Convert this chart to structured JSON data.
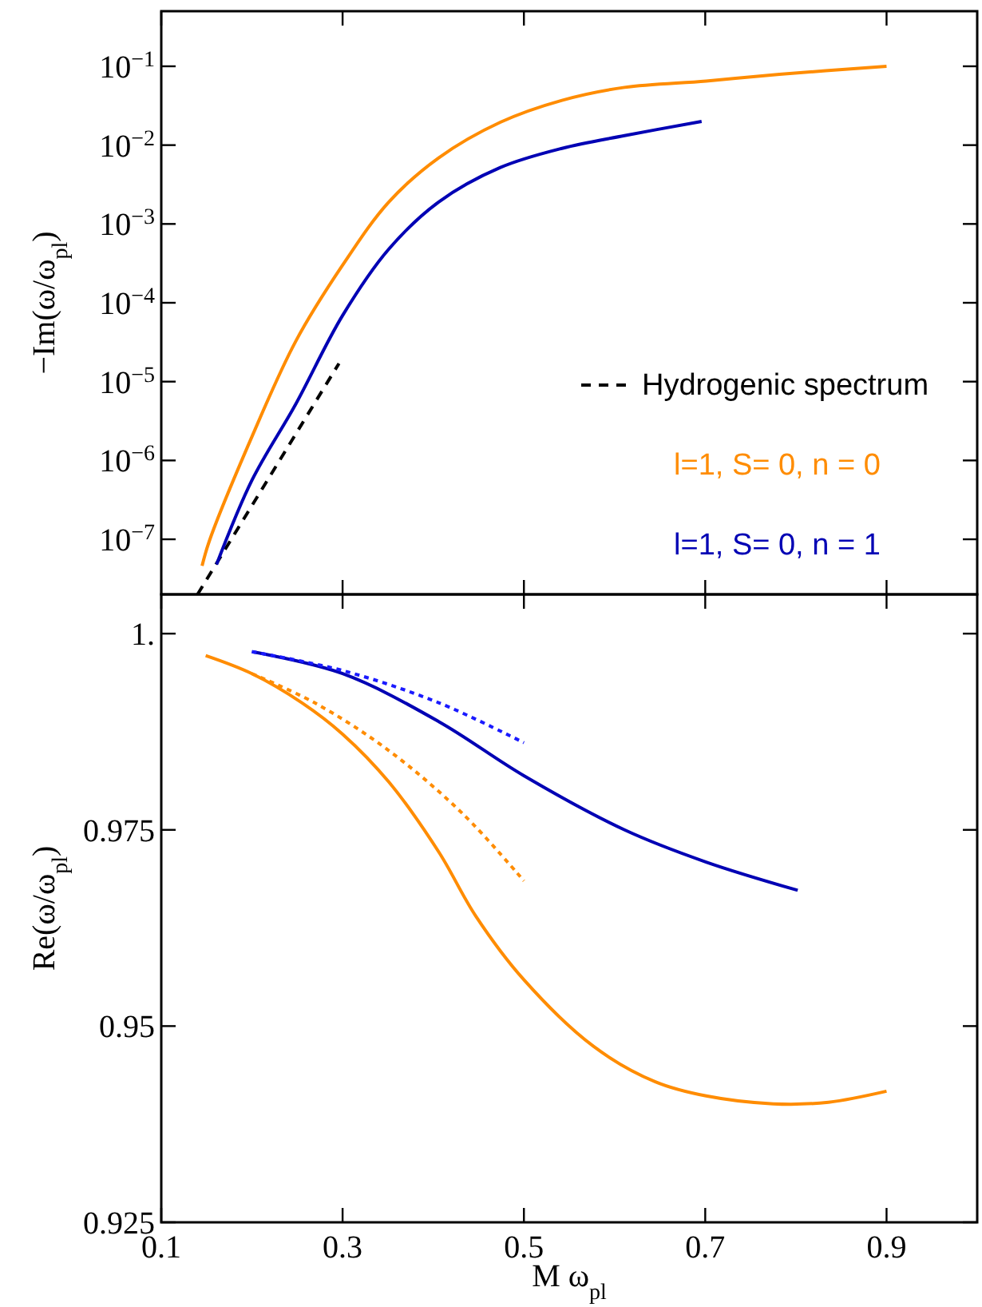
{
  "chart_data": [
    {
      "type": "line",
      "ylabel": "−Im(ω/ω$_{pl}$)",
      "log": "y",
      "xlim": [
        0.1,
        1.0
      ],
      "xticks": [
        0.1,
        0.3,
        0.5,
        0.7,
        0.9
      ],
      "ylim": [
        2e-08,
        0.5
      ],
      "yticks": [
        {
          "value": 1e-07,
          "label": "10$^{−7}$"
        },
        {
          "value": 1e-06,
          "label": "10$^{−6}$"
        },
        {
          "value": 1e-05,
          "label": "10$^{−5}$"
        },
        {
          "value": 0.0001,
          "label": "10$^{−4}$"
        },
        {
          "value": 0.001,
          "label": "10$^{−3}$"
        },
        {
          "value": 0.01,
          "label": "10$^{−2}$"
        },
        {
          "value": 0.1,
          "label": "10$^{−1}$"
        }
      ],
      "tick_labels": "y",
      "legend": "bottom right",
      "series": [
        {
          "name": "Hydrogenic spectrum",
          "color": "#000000",
          "line_style": "dashed",
          "x": [
            0.14,
            0.296
          ],
          "values": [
            2e-08,
            1.7e-05
          ]
        },
        {
          "name": "l=1, S= 0, n = 0",
          "color": "#ff8c00",
          "line_style": "solid",
          "x": [
            0.145,
            0.153,
            0.2,
            0.248,
            0.3,
            0.351,
            0.406,
            0.474,
            0.542,
            0.611,
            0.701,
            0.782,
            0.9
          ],
          "values": [
            4.6e-08,
            9.5e-08,
            2e-06,
            3.2e-05,
            0.0003,
            0.0019,
            0.0069,
            0.0195,
            0.037,
            0.054,
            0.065,
            0.079,
            0.1
          ]
        },
        {
          "name": "l=1, S= 0, n = 1",
          "color": "#0000b4",
          "line_style": "solid",
          "x": [
            0.161,
            0.2,
            0.248,
            0.3,
            0.351,
            0.406,
            0.474,
            0.542,
            0.611,
            0.696
          ],
          "values": [
            4.8e-08,
            5.6e-07,
            5.1e-06,
            6.9e-05,
            0.00048,
            0.0019,
            0.0052,
            0.0091,
            0.0132,
            0.02
          ]
        }
      ]
    },
    {
      "type": "line",
      "xlabel": "M ω$_{pl}$",
      "ylabel": "Re(ω/ω$_{pl}$)",
      "xlim": [
        0.1,
        1.0
      ],
      "xticks": [
        0.1,
        0.3,
        0.5,
        0.7,
        0.9
      ],
      "ylim": [
        0.925,
        1.005
      ],
      "yticks": [
        {
          "value": 1.0,
          "label": "1."
        },
        0.975,
        0.95,
        0.925
      ],
      "series": [
        {
          "color": "#ff8c00",
          "line_style": "solid",
          "x": [
            0.149,
            0.2,
            0.255,
            0.3,
            0.351,
            0.406,
            0.447,
            0.5,
            0.577,
            0.645,
            0.701,
            0.775,
            0.836,
            0.9
          ],
          "values": [
            0.9972,
            0.9949,
            0.9912,
            0.9872,
            0.9811,
            0.9722,
            0.964,
            0.9559,
            0.9474,
            0.9429,
            0.9411,
            0.9401,
            0.9403,
            0.9417
          ]
        },
        {
          "color": "#ff8c00",
          "line_style": "dotted",
          "x": [
            0.2,
            0.269,
            0.351,
            0.433,
            0.5
          ],
          "values": [
            0.9949,
            0.9912,
            0.9851,
            0.977,
            0.9685
          ]
        },
        {
          "color": "#0000b4",
          "line_style": "solid",
          "x": [
            0.2,
            0.3,
            0.406,
            0.5,
            0.611,
            0.701,
            0.802
          ],
          "values": [
            0.9977,
            0.9949,
            0.9888,
            0.9819,
            0.975,
            0.9709,
            0.9673
          ]
        },
        {
          "color": "#1a1aff",
          "line_style": "dotted",
          "x": [
            0.2,
            0.3,
            0.406,
            0.5
          ],
          "values": [
            0.9977,
            0.9953,
            0.9912,
            0.9861
          ]
        }
      ]
    }
  ]
}
